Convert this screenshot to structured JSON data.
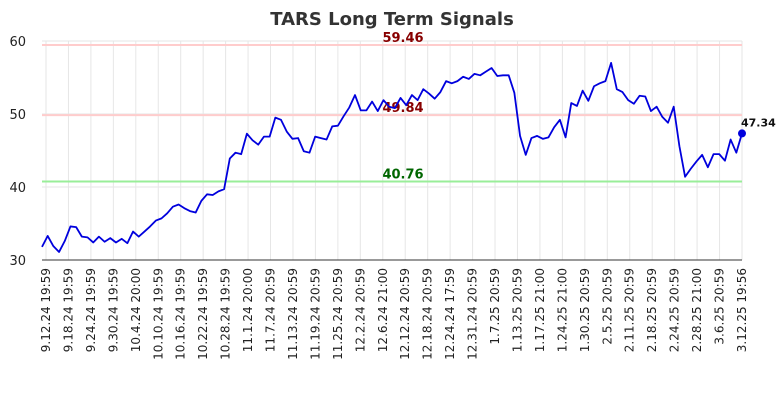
{
  "chart_data": {
    "type": "line",
    "title": "TARS Long Term Signals",
    "xlabel": "",
    "ylabel": "",
    "ylim": [
      30,
      60
    ],
    "yticks": [
      30,
      40,
      50,
      60
    ],
    "grid": true,
    "x_tick_labels": [
      "9.12.24 19:59",
      "9.18.24 19:59",
      "9.24.24 19:59",
      "9.30.24 19:59",
      "10.4.24 20:00",
      "10.10.24 19:59",
      "10.16.24 19:59",
      "10.22.24 19:59",
      "10.28.24 19:59",
      "11.1.24 20:00",
      "11.7.24 20:59",
      "11.13.24 20:59",
      "11.19.24 20:59",
      "11.25.24 20:59",
      "12.2.24 20:59",
      "12.6.24 21:00",
      "12.12.24 20:59",
      "12.18.24 20:59",
      "12.24.24 17:59",
      "12.31.24 20:59",
      "1.7.25 20:59",
      "1.13.25 20:59",
      "1.17.25 21:00",
      "1.24.25 21:00",
      "1.30.25 20:59",
      "2.5.25 20:59",
      "2.11.25 20:59",
      "2.18.25 20:59",
      "2.24.25 20:59",
      "2.28.25 21:00",
      "3.6.25 20:59",
      "3.12.25 19:56"
    ],
    "series": [
      {
        "color": "#0000dd",
        "values": [
          31.8,
          33.3,
          31.9,
          31.1,
          32.6,
          34.6,
          34.5,
          33.2,
          33.1,
          32.4,
          33.2,
          32.5,
          33.0,
          32.4,
          32.9,
          32.3,
          33.9,
          33.2,
          33.9,
          34.6,
          35.4,
          35.7,
          36.4,
          37.3,
          37.6,
          37.1,
          36.7,
          36.5,
          38.1,
          39.0,
          38.9,
          39.4,
          39.7,
          43.9,
          44.7,
          44.5,
          47.3,
          46.4,
          45.8,
          46.9,
          46.9,
          49.5,
          49.2,
          47.6,
          46.6,
          46.7,
          44.9,
          44.7,
          46.9,
          46.7,
          46.5,
          48.3,
          48.4,
          49.7,
          50.9,
          52.6,
          50.5,
          50.5,
          51.7,
          50.4,
          51.9,
          51.0,
          50.8,
          52.2,
          51.2,
          52.6,
          51.9,
          53.4,
          52.8,
          52.1,
          53.0,
          54.5,
          54.2,
          54.5,
          55.1,
          54.8,
          55.5,
          55.3,
          55.8,
          56.3,
          55.2,
          55.3,
          55.3,
          52.9,
          47.0,
          44.4,
          46.7,
          47.0,
          46.6,
          46.8,
          48.2,
          49.2,
          46.8,
          51.5,
          51.1,
          53.2,
          51.8,
          53.8,
          54.2,
          54.5,
          57.0,
          53.4,
          53.0,
          51.9,
          51.4,
          52.5,
          52.4,
          50.4,
          51.0,
          49.6,
          48.8,
          51.0,
          45.6,
          41.4,
          42.5,
          43.5,
          44.4,
          42.7,
          44.5,
          44.5,
          43.6,
          46.5,
          44.7,
          47.34
        ]
      }
    ],
    "levels": [
      {
        "label": "59.46",
        "value": 59.46,
        "line_color": "#ffcccc",
        "text_color": "#880000"
      },
      {
        "label": "49.84",
        "value": 49.84,
        "line_color": "#ffcccc",
        "text_color": "#880000"
      },
      {
        "label": "40.76",
        "value": 40.76,
        "line_color": "#99ee99",
        "text_color": "#006600"
      }
    ],
    "last_point": {
      "label": "47.34",
      "value": 47.34
    }
  }
}
